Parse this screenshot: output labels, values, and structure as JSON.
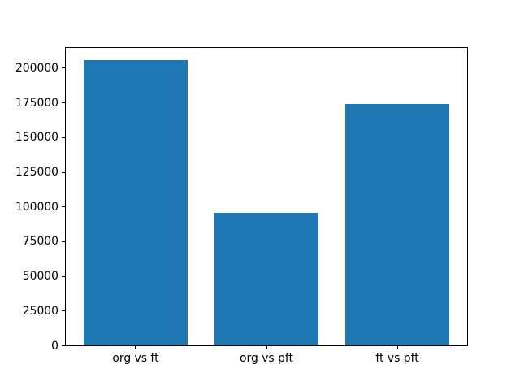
{
  "figure": {
    "background": "#ffffff",
    "bar_color": "#1f77b4",
    "spine_color": "#000000",
    "text_color": "#000000"
  },
  "chart_data": {
    "type": "bar",
    "title": "",
    "xlabel": "",
    "ylabel": "",
    "categories": [
      "org vs ft",
      "org vs pft",
      "ft vs pft"
    ],
    "values": [
      206000,
      96000,
      174000
    ],
    "yticks": [
      0,
      25000,
      50000,
      75000,
      100000,
      125000,
      150000,
      175000,
      200000
    ],
    "ylim": [
      0,
      215500
    ],
    "xlim": [
      -0.54,
      2.54
    ],
    "bar_width": 0.8,
    "grid": false,
    "legend": null
  }
}
